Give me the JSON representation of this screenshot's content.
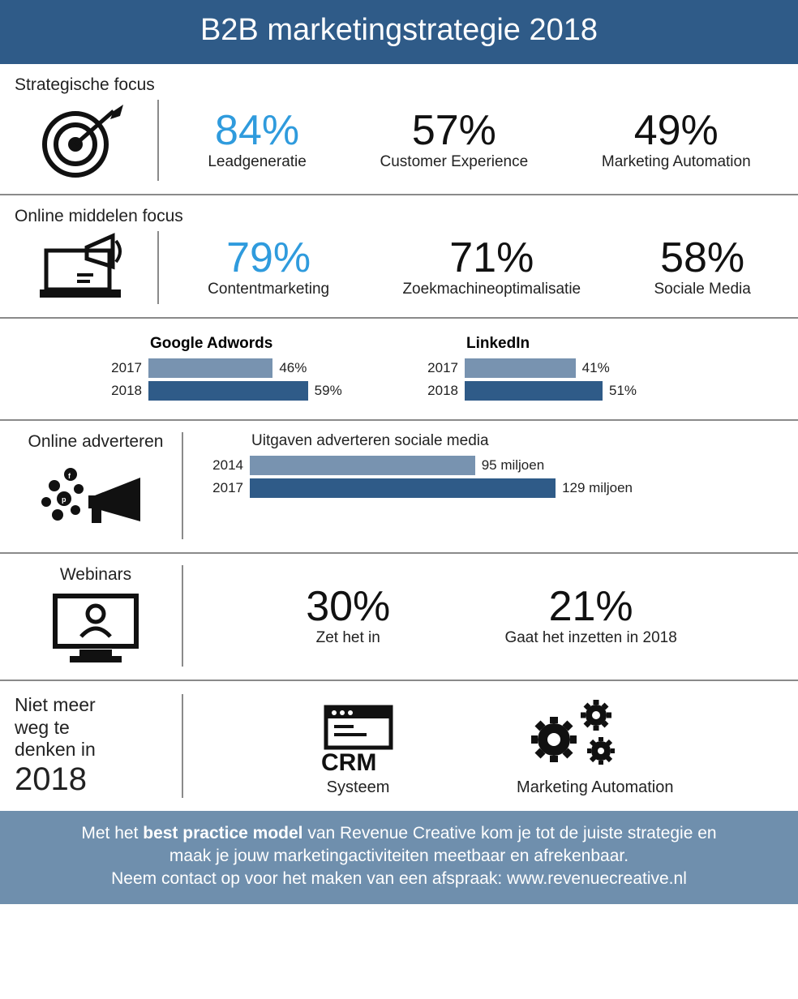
{
  "colors": {
    "header_bg": "#2f5b88",
    "footer_bg": "#6f8fad",
    "accent": "#2f9bdd",
    "bar_light": "#7893b0",
    "bar_dark": "#2f5b88",
    "text": "#111111",
    "divider": "#8a8a8a"
  },
  "header": {
    "title": "B2B marketingstrategie 2018"
  },
  "strategic": {
    "title": "Strategische focus",
    "stats": [
      {
        "pct": "84%",
        "label": "Leadgeneratie",
        "accent": true
      },
      {
        "pct": "57%",
        "label": "Customer Experience",
        "accent": false
      },
      {
        "pct": "49%",
        "label": "Marketing Automation",
        "accent": false
      }
    ]
  },
  "online_focus": {
    "title": "Online middelen focus",
    "stats": [
      {
        "pct": "79%",
        "label": "Contentmarketing",
        "accent": true
      },
      {
        "pct": "71%",
        "label": "Zoekmachineoptimalisatie",
        "accent": false
      },
      {
        "pct": "58%",
        "label": "Sociale Media",
        "accent": false
      }
    ]
  },
  "bar_charts": {
    "max_pct": 60,
    "adwords": {
      "title": "Google Adwords",
      "rows": [
        {
          "year": "2017",
          "value": 46,
          "label": "46%",
          "color": "#7893b0"
        },
        {
          "year": "2018",
          "value": 59,
          "label": "59%",
          "color": "#2f5b88"
        }
      ]
    },
    "linkedin": {
      "title": "LinkedIn",
      "rows": [
        {
          "year": "2017",
          "value": 41,
          "label": "41%",
          "color": "#7893b0"
        },
        {
          "year": "2018",
          "value": 51,
          "label": "51%",
          "color": "#2f5b88"
        }
      ]
    }
  },
  "advertising": {
    "title": "Online adverteren",
    "spend": {
      "title": "Uitgaven adverteren sociale media",
      "max": 130,
      "rows": [
        {
          "year": "2014",
          "value": 95,
          "label": "95 miljoen",
          "color": "#7893b0"
        },
        {
          "year": "2017",
          "value": 129,
          "label": "129 miljoen",
          "color": "#2f5b88"
        }
      ]
    }
  },
  "webinars": {
    "title": "Webinars",
    "stats": [
      {
        "pct": "30%",
        "label": "Zet het in"
      },
      {
        "pct": "21%",
        "label": "Gaat het inzetten in 2018"
      }
    ]
  },
  "bottom": {
    "label_line1": "Niet meer",
    "label_line2": "weg te",
    "label_line3": "denken in",
    "year": "2018",
    "items": [
      {
        "caption": "Systeem",
        "icon": "crm"
      },
      {
        "caption": "Marketing Automation",
        "icon": "gears"
      }
    ]
  },
  "footer": {
    "line1_prefix": "Met het ",
    "line1_bold": "best practice model",
    "line1_suffix": " van Revenue Creative kom je tot de juiste strategie en",
    "line2": "maak je jouw marketingactiviteiten meetbaar en afrekenbaar.",
    "line3": "Neem contact op voor het maken van een afspraak: www.revenuecreative.nl"
  }
}
